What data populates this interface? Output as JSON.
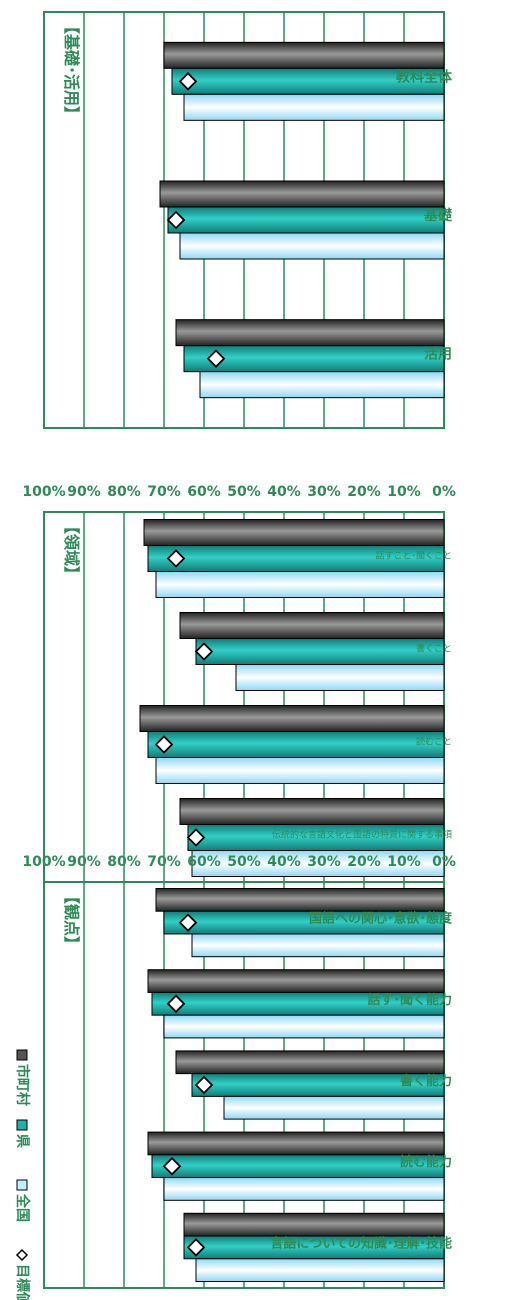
{
  "chart_data": [
    {
      "type": "bar",
      "title": "【基礎･活用】",
      "categories": [
        "教科全体",
        "基礎",
        "活用"
      ],
      "series": [
        {
          "name": "市町村",
          "values": [
            70,
            71,
            67
          ]
        },
        {
          "name": "県",
          "values": [
            68,
            69,
            65
          ]
        },
        {
          "name": "全国",
          "values": [
            65,
            66,
            61
          ]
        },
        {
          "name": "目標値",
          "values": [
            64,
            67,
            57
          ]
        }
      ],
      "ylim": [
        0,
        100
      ],
      "yticks": [
        "0%",
        "10%",
        "20%",
        "30%",
        "40%",
        "50%",
        "60%",
        "70%",
        "80%",
        "90%",
        "100%"
      ],
      "grid": true
    },
    {
      "type": "bar",
      "title": "【領域】",
      "categories": [
        "話すこと･聞くこと",
        "書くこと",
        "読むこと",
        "伝統的な言語文化と国語の特質に関する事項"
      ],
      "series": [
        {
          "name": "市町村",
          "values": [
            75,
            66,
            76,
            66
          ]
        },
        {
          "name": "県",
          "values": [
            74,
            62,
            74,
            64
          ]
        },
        {
          "name": "全国",
          "values": [
            72,
            52,
            72,
            63
          ]
        },
        {
          "name": "目標値",
          "values": [
            67,
            60,
            70,
            62
          ]
        }
      ],
      "ylim": [
        0,
        100
      ],
      "yticks": [
        "0%",
        "10%",
        "20%",
        "30%",
        "40%",
        "50%",
        "60%",
        "70%",
        "80%",
        "90%",
        "100%"
      ],
      "grid": true
    },
    {
      "type": "bar",
      "title": "【観点】",
      "categories": [
        "国語への関心･意欲･態度",
        "話す･聞く能力",
        "書く能力",
        "読む能力",
        "言語についての知識･理解･技能"
      ],
      "series": [
        {
          "name": "市町村",
          "values": [
            72,
            74,
            67,
            74,
            65
          ]
        },
        {
          "name": "県",
          "values": [
            70,
            73,
            63,
            73,
            65
          ]
        },
        {
          "name": "全国",
          "values": [
            63,
            70,
            55,
            70,
            62
          ]
        },
        {
          "name": "目標値",
          "values": [
            64,
            67,
            60,
            68,
            62
          ]
        }
      ],
      "ylim": [
        0,
        100
      ],
      "yticks": [
        "0%",
        "10%",
        "20%",
        "30%",
        "40%",
        "50%",
        "60%",
        "70%",
        "80%",
        "90%",
        "100%"
      ],
      "grid": true
    }
  ],
  "legend": {
    "items": [
      {
        "label": "市町村",
        "marker": "■"
      },
      {
        "label": "県",
        "marker": "■"
      },
      {
        "label": "全国",
        "marker": "□"
      },
      {
        "label": "目標値",
        "marker": "◇"
      }
    ]
  },
  "colors": {
    "municipality": "#555555",
    "prefecture": "#20b2aa",
    "national": "#bfefff",
    "target_marker": "#ffffff",
    "axis_green": "#2e8b57"
  }
}
